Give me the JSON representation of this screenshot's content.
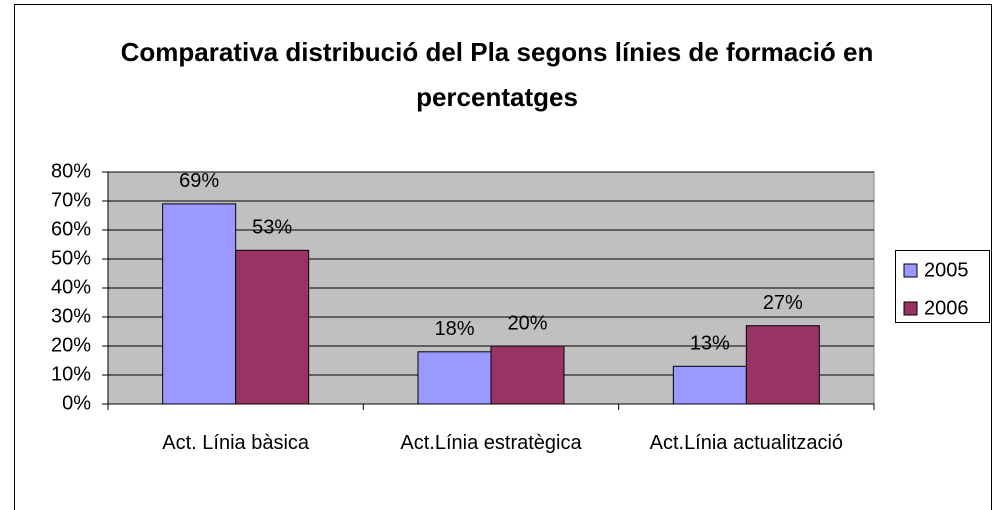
{
  "chart_data": {
    "type": "bar",
    "title": "Comparativa distribució del Pla segons línies de formació en percentatges",
    "categories": [
      "Act. Línia bàsica",
      "Act.Línia estratègica",
      "Act.Línia actualització"
    ],
    "series": [
      {
        "name": "2005",
        "color": "#9999ff",
        "values": [
          69,
          18,
          13
        ],
        "value_labels": [
          "69%",
          "18%",
          "13%"
        ]
      },
      {
        "name": "2006",
        "color": "#993366",
        "values": [
          53,
          20,
          27
        ],
        "value_labels": [
          "53%",
          "20%",
          "27%"
        ]
      }
    ],
    "ylim": [
      0,
      80
    ],
    "yticks": [
      {
        "value": 0,
        "label": "0%"
      },
      {
        "value": 10,
        "label": "10%"
      },
      {
        "value": 20,
        "label": "20%"
      },
      {
        "value": 30,
        "label": "30%"
      },
      {
        "value": 40,
        "label": "40%"
      },
      {
        "value": 50,
        "label": "50%"
      },
      {
        "value": 60,
        "label": "60%"
      },
      {
        "value": 70,
        "label": "70%"
      },
      {
        "value": 80,
        "label": "80%"
      }
    ],
    "grid": true,
    "plot_background": "#c0c0c0",
    "legend": "right"
  }
}
